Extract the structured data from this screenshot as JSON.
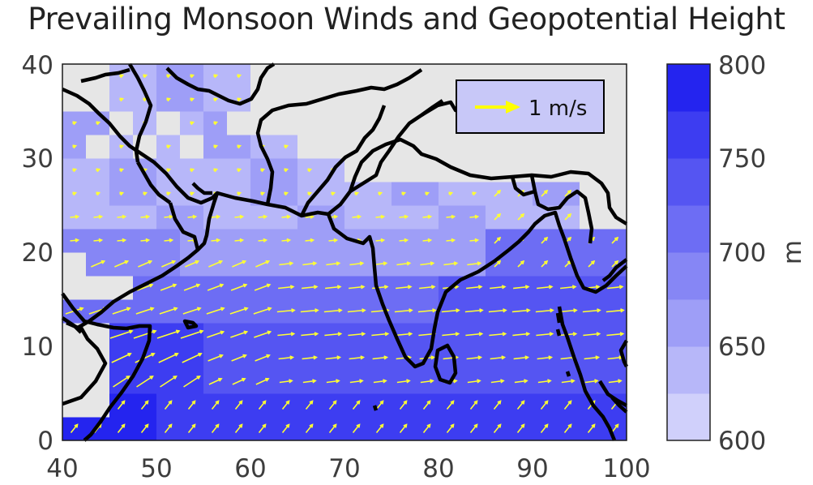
{
  "title": "Prevailing Monsoon Winds and Geopotential Height",
  "map": {
    "lon_range": [
      40,
      100
    ],
    "lat_range": [
      0,
      40
    ],
    "x_ticks": [
      "40",
      "50",
      "60",
      "70",
      "80",
      "90",
      "100"
    ],
    "y_ticks": [
      "0",
      "10",
      "20",
      "30",
      "40"
    ],
    "land_color": "#e6e6e6",
    "outline_color": "#000000",
    "arrow_color": "#ffff33"
  },
  "legend": {
    "label": "1 m/s"
  },
  "colorbar": {
    "label": "m",
    "ticks": [
      "600",
      "650",
      "700",
      "750",
      "800"
    ],
    "min": 600,
    "max": 800,
    "levels": [
      "#d0d0fb",
      "#b7b7f9",
      "#9e9ef7",
      "#8686f5",
      "#6d6df4",
      "#5555f2",
      "#3d3df1",
      "#2424ef"
    ]
  }
}
